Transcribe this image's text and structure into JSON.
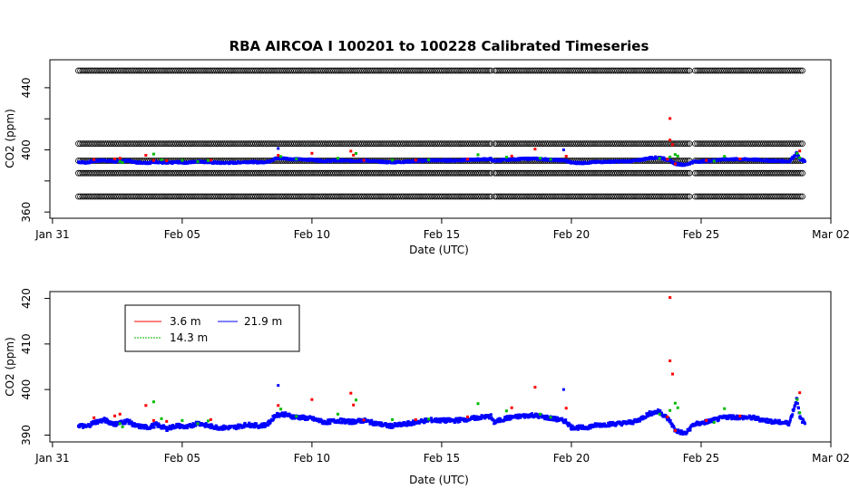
{
  "chart_data": [
    {
      "type": "scatter",
      "title": "RBA   AIRCOA  I    100201  to  100228   Calibrated Timeseries",
      "xlabel": "Date (UTC)",
      "ylabel": "CO2 (ppm)",
      "x_range_days": [
        -0.1,
        30.0
      ],
      "ylim": [
        356,
        458
      ],
      "x_ticks": [
        {
          "day": 0,
          "label": "Jan 31"
        },
        {
          "day": 5,
          "label": "Feb 05"
        },
        {
          "day": 10,
          "label": "Feb 10"
        },
        {
          "day": 15,
          "label": "Feb 15"
        },
        {
          "day": 20,
          "label": "Feb 20"
        },
        {
          "day": 25,
          "label": "Feb 25"
        },
        {
          "day": 30,
          "label": "Mar 02"
        }
      ],
      "y_ticks": [
        360,
        380,
        400,
        420,
        440
      ],
      "y_tick_labels": [
        "360",
        "",
        "400",
        "",
        "440"
      ],
      "calibration_levels": [
        370,
        385,
        393,
        404,
        451
      ],
      "calibration_start_day": 1.0,
      "calibration_end_day": 28.9,
      "legend": "none",
      "grid": false
    },
    {
      "type": "scatter",
      "xlabel": "Date (UTC)",
      "ylabel": "CO2 (ppm)",
      "x_range_days": [
        -0.1,
        30.0
      ],
      "ylim": [
        388.5,
        421.5
      ],
      "x_ticks": [
        {
          "day": 0,
          "label": "Jan 31"
        },
        {
          "day": 5,
          "label": "Feb 05"
        },
        {
          "day": 10,
          "label": "Feb 10"
        },
        {
          "day": 15,
          "label": "Feb 15"
        },
        {
          "day": 20,
          "label": "Feb 20"
        },
        {
          "day": 25,
          "label": "Feb 25"
        },
        {
          "day": 30,
          "label": "Mar 02"
        }
      ],
      "y_ticks": [
        390,
        400,
        410,
        420
      ],
      "legend_position": "top-left",
      "grid": false,
      "series": [
        {
          "name": "3.6 m",
          "color": "#ff0000",
          "points": [
            [
              1.6,
              393.8
            ],
            [
              2.4,
              394.2
            ],
            [
              2.6,
              394.6
            ],
            [
              3.6,
              396.5
            ],
            [
              3.9,
              393.2
            ],
            [
              4.4,
              393.0
            ],
            [
              6.1,
              393.4
            ],
            [
              8.7,
              396.5
            ],
            [
              10.0,
              397.8
            ],
            [
              11.5,
              399.2
            ],
            [
              11.6,
              396.6
            ],
            [
              12.0,
              393.3
            ],
            [
              14.0,
              393.4
            ],
            [
              16.0,
              394.0
            ],
            [
              17.7,
              396.0
            ],
            [
              18.6,
              400.5
            ],
            [
              19.8,
              395.9
            ],
            [
              23.8,
              420.2
            ],
            [
              23.8,
              406.3
            ],
            [
              23.9,
              403.4
            ],
            [
              23.7,
              394.0
            ],
            [
              24.0,
              391.0
            ],
            [
              25.2,
              393.2
            ],
            [
              26.5,
              394.2
            ],
            [
              28.8,
              399.3
            ]
          ]
        },
        {
          "name": "14.3 m",
          "color": "#00bb00",
          "points": [
            [
              2.6,
              392.5
            ],
            [
              2.7,
              391.8
            ],
            [
              3.9,
              397.3
            ],
            [
              4.2,
              393.6
            ],
            [
              5.0,
              393.2
            ],
            [
              5.6,
              392.5
            ],
            [
              6.0,
              393.1
            ],
            [
              8.8,
              395.7
            ],
            [
              9.4,
              394.1
            ],
            [
              11.0,
              394.6
            ],
            [
              11.7,
              397.7
            ],
            [
              13.1,
              393.4
            ],
            [
              14.5,
              393.5
            ],
            [
              16.4,
              396.9
            ],
            [
              17.5,
              395.3
            ],
            [
              18.8,
              394.6
            ],
            [
              19.2,
              393.9
            ],
            [
              23.4,
              394.6
            ],
            [
              23.8,
              395.4
            ],
            [
              24.0,
              397.0
            ],
            [
              24.1,
              396.0
            ],
            [
              25.5,
              392.8
            ],
            [
              25.9,
              395.8
            ],
            [
              28.7,
              397.8
            ],
            [
              28.8,
              394.9
            ]
          ]
        },
        {
          "name": "21.9 m",
          "color": "#0000ff",
          "anchors": [
            [
              1.0,
              392.2
            ],
            [
              1.3,
              391.8
            ],
            [
              1.6,
              392.8
            ],
            [
              2.0,
              393.3
            ],
            [
              2.4,
              392.4
            ],
            [
              2.9,
              393.1
            ],
            [
              3.2,
              392.0
            ],
            [
              3.7,
              391.7
            ],
            [
              4.0,
              392.3
            ],
            [
              4.4,
              391.4
            ],
            [
              4.8,
              392.1
            ],
            [
              5.2,
              391.7
            ],
            [
              5.6,
              392.7
            ],
            [
              6.0,
              392.0
            ],
            [
              6.5,
              391.6
            ],
            [
              7.0,
              391.7
            ],
            [
              7.5,
              392.3
            ],
            [
              8.0,
              392.0
            ],
            [
              8.3,
              392.4
            ],
            [
              8.6,
              394.4
            ],
            [
              8.9,
              394.6
            ],
            [
              9.3,
              394.0
            ],
            [
              9.7,
              393.8
            ],
            [
              10.0,
              393.6
            ],
            [
              10.5,
              392.8
            ],
            [
              11.0,
              393.2
            ],
            [
              11.5,
              392.9
            ],
            [
              12.0,
              393.2
            ],
            [
              12.5,
              392.5
            ],
            [
              13.0,
              392.0
            ],
            [
              13.5,
              392.3
            ],
            [
              14.0,
              392.8
            ],
            [
              14.5,
              393.3
            ],
            [
              15.0,
              393.2
            ],
            [
              15.5,
              393.2
            ],
            [
              16.0,
              393.5
            ],
            [
              16.5,
              393.9
            ],
            [
              16.9,
              394.1
            ],
            [
              17.0,
              392.8
            ],
            [
              17.5,
              393.7
            ],
            [
              18.0,
              394.1
            ],
            [
              18.5,
              394.4
            ],
            [
              19.0,
              393.9
            ],
            [
              19.5,
              393.4
            ],
            [
              19.8,
              393.0
            ],
            [
              20.0,
              391.7
            ],
            [
              20.5,
              391.6
            ],
            [
              21.0,
              392.2
            ],
            [
              21.5,
              392.4
            ],
            [
              22.0,
              392.6
            ],
            [
              22.5,
              393.0
            ],
            [
              23.0,
              394.7
            ],
            [
              23.4,
              395.2
            ],
            [
              23.8,
              393.1
            ],
            [
              24.0,
              391.0
            ],
            [
              24.4,
              390.3
            ],
            [
              24.7,
              392.3
            ],
            [
              25.0,
              392.6
            ],
            [
              25.5,
              393.3
            ],
            [
              26.0,
              394.0
            ],
            [
              26.5,
              393.9
            ],
            [
              27.0,
              393.8
            ],
            [
              27.5,
              393.2
            ],
            [
              28.0,
              392.8
            ],
            [
              28.4,
              392.6
            ],
            [
              28.7,
              398.2
            ],
            [
              28.8,
              393.8
            ],
            [
              29.0,
              392.6
            ]
          ],
          "outliers": [
            [
              8.7,
              400.9
            ],
            [
              19.7,
              400.0
            ]
          ]
        }
      ]
    }
  ]
}
